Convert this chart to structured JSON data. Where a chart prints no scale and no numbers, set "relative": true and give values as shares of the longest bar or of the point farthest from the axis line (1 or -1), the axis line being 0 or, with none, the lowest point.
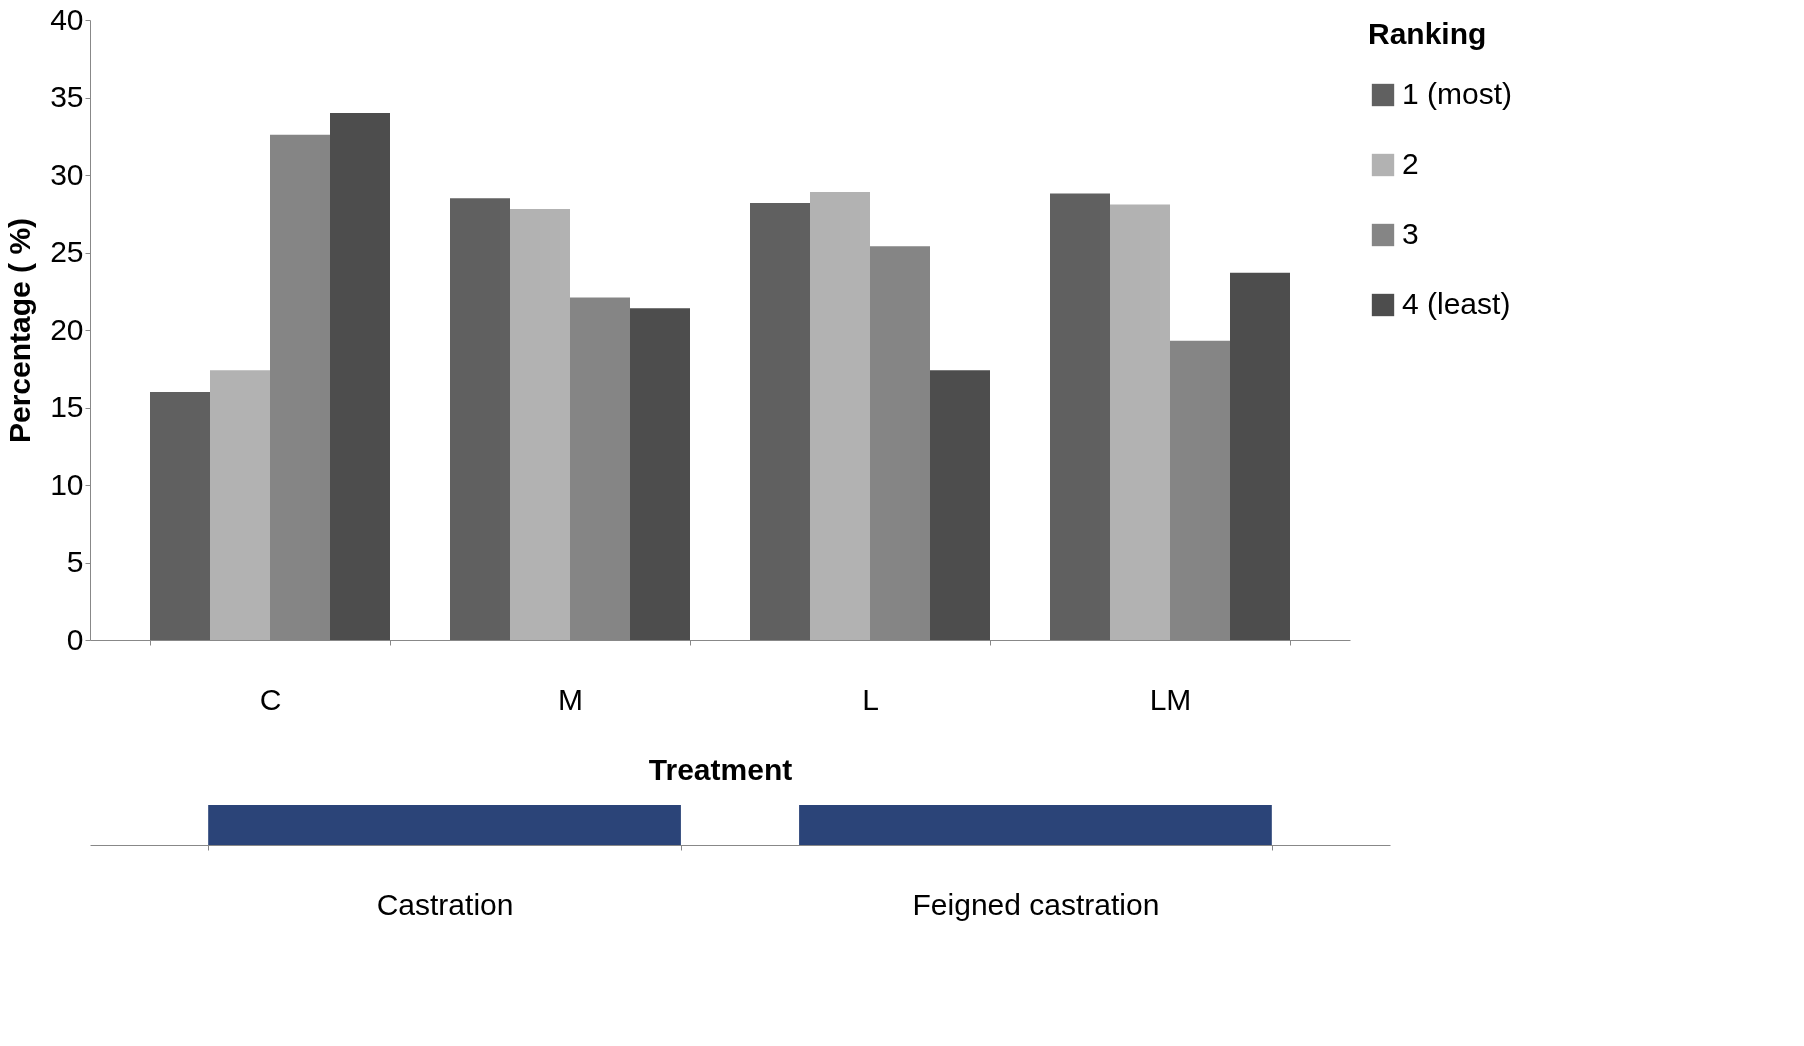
{
  "chart_data": [
    {
      "type": "bar",
      "xlabel": "Treatment",
      "ylabel": "Percentage ( %)",
      "legend_title": "Ranking",
      "legend": "right",
      "grid": false,
      "categories": [
        "C",
        "M",
        "L",
        "LM"
      ],
      "ylim": [
        0,
        40
      ],
      "yticks": [
        0,
        5,
        10,
        15,
        20,
        25,
        30,
        35,
        40
      ],
      "series": [
        {
          "name": "1 (most)",
          "color": "#606060",
          "values": [
            16.0,
            28.5,
            28.2,
            28.8
          ]
        },
        {
          "name": "2",
          "color": "#b2b2b2",
          "values": [
            17.4,
            27.8,
            28.9,
            28.1
          ]
        },
        {
          "name": "3",
          "color": "#858585",
          "values": [
            32.6,
            22.1,
            25.4,
            19.3
          ]
        },
        {
          "name": "4 (least)",
          "color": "#4d4d4d",
          "values": [
            34.0,
            21.4,
            17.4,
            23.7
          ]
        }
      ]
    },
    {
      "type": "bar",
      "relative": true,
      "categories": [
        "Castration",
        "Feigned castration"
      ],
      "values": [
        1,
        1
      ],
      "color": "#2b4478",
      "legend": false,
      "grid": false
    }
  ]
}
